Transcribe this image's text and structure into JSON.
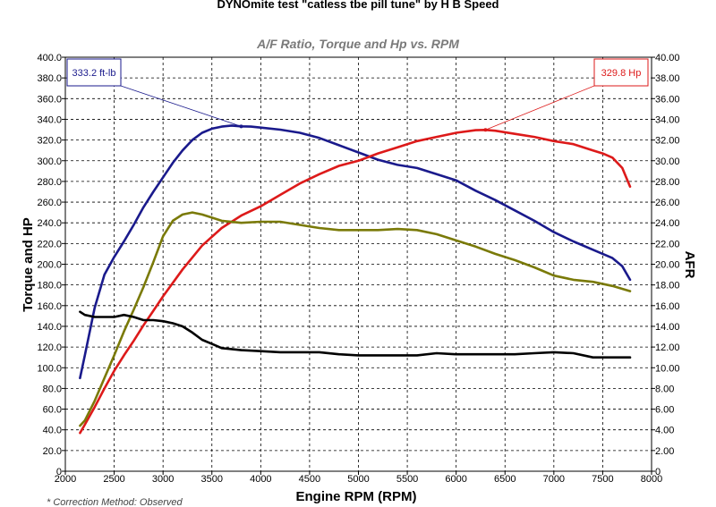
{
  "chart_data": {
    "type": "line",
    "title": "DYNOmite test \"catless tbe pill tune\" by H B Speed",
    "subtitle": "A/F Ratio, Torque and Hp vs. RPM",
    "xlabel": "Engine RPM (RPM)",
    "ylabel": "Torque and HP",
    "y2label": "AFR",
    "footnote": "* Correction Method: Observed",
    "xlim": [
      2000,
      8000
    ],
    "ylim": [
      0,
      400
    ],
    "y2lim": [
      0,
      40
    ],
    "grid": true,
    "x_ticks": [
      "2000",
      "2500",
      "3000",
      "3500",
      "4000",
      "4500",
      "5000",
      "5500",
      "6000",
      "6500",
      "7000",
      "7500",
      "8000"
    ],
    "y_ticks": [
      "0",
      "20.0",
      "40.0",
      "60.0",
      "80.0",
      "100.0",
      "120.0",
      "140.0",
      "160.0",
      "180.0",
      "200.0",
      "220.0",
      "240.0",
      "260.0",
      "280.0",
      "300.0",
      "320.0",
      "340.0",
      "360.0",
      "380.0",
      "400.0"
    ],
    "y2_ticks": [
      "0",
      "2.00",
      "4.00",
      "6.00",
      "8.00",
      "10.00",
      "12.00",
      "14.00",
      "16.00",
      "18.00",
      "20.00",
      "22.00",
      "24.00",
      "26.00",
      "28.00",
      "30.00",
      "32.00",
      "34.00",
      "36.00",
      "38.00",
      "40.00"
    ],
    "series": [
      {
        "axis": "left",
        "color": "#1a1a8c",
        "x": [
          2150,
          2200,
          2300,
          2400,
          2500,
          2600,
          2700,
          2800,
          2900,
          3000,
          3100,
          3200,
          3300,
          3400,
          3500,
          3600,
          3700,
          3800,
          3900,
          4000,
          4200,
          4400,
          4600,
          4800,
          5000,
          5200,
          5400,
          5600,
          5800,
          6000,
          6200,
          6400,
          6600,
          6800,
          7000,
          7200,
          7400,
          7500,
          7600,
          7700,
          7780
        ],
        "y": [
          90,
          112,
          158,
          190,
          207,
          222,
          238,
          255,
          270,
          284,
          298,
          310,
          320,
          327,
          331,
          333,
          334,
          333.2,
          333,
          332,
          330,
          327,
          322,
          315,
          308,
          301,
          296,
          293,
          287,
          281,
          271,
          262,
          252,
          242,
          231,
          222,
          214,
          210,
          206,
          198,
          185
        ]
      },
      {
        "axis": "left",
        "color": "#dd1a1a",
        "x": [
          2150,
          2200,
          2300,
          2400,
          2500,
          2600,
          2700,
          2800,
          2900,
          3000,
          3200,
          3400,
          3600,
          3800,
          4000,
          4200,
          4400,
          4600,
          4800,
          5000,
          5200,
          5400,
          5600,
          5800,
          6000,
          6200,
          6300,
          6400,
          6600,
          6800,
          7000,
          7200,
          7300,
          7400,
          7500,
          7600,
          7700,
          7780
        ],
        "y": [
          37,
          45,
          62,
          80,
          97,
          112,
          126,
          141,
          155,
          169,
          195,
          218,
          235,
          247,
          256,
          267,
          278,
          287,
          295,
          300,
          307,
          313,
          319,
          323,
          327,
          329.5,
          329.8,
          329,
          326,
          323,
          319,
          316,
          313,
          310,
          307,
          303,
          293,
          275
        ]
      },
      {
        "axis": "right",
        "color": "#7a7a08",
        "x": [
          2150,
          2200,
          2300,
          2400,
          2500,
          2600,
          2700,
          2800,
          2900,
          3000,
          3100,
          3200,
          3300,
          3400,
          3500,
          3600,
          3800,
          4000,
          4200,
          4400,
          4600,
          4800,
          5000,
          5200,
          5400,
          5600,
          5800,
          6000,
          6200,
          6400,
          6600,
          6800,
          7000,
          7200,
          7400,
          7600,
          7780
        ],
        "y": [
          4.4,
          4.9,
          6.8,
          9.0,
          11.2,
          13.5,
          15.6,
          17.8,
          20.2,
          22.7,
          24.2,
          24.8,
          25.0,
          24.8,
          24.5,
          24.2,
          24.0,
          24.1,
          24.1,
          23.8,
          23.5,
          23.3,
          23.3,
          23.3,
          23.4,
          23.3,
          22.9,
          22.3,
          21.7,
          21.0,
          20.4,
          19.7,
          18.9,
          18.5,
          18.3,
          17.9,
          17.4
        ]
      },
      {
        "axis": "right",
        "color": "#000000",
        "x": [
          2150,
          2200,
          2300,
          2400,
          2500,
          2600,
          2700,
          2800,
          2900,
          3000,
          3100,
          3200,
          3300,
          3400,
          3500,
          3600,
          3800,
          4000,
          4200,
          4400,
          4600,
          4800,
          5000,
          5200,
          5400,
          5600,
          5800,
          6000,
          6200,
          6400,
          6600,
          6800,
          7000,
          7200,
          7400,
          7600,
          7780
        ],
        "y": [
          15.4,
          15.1,
          14.9,
          14.9,
          14.9,
          15.1,
          14.9,
          14.6,
          14.6,
          14.5,
          14.3,
          14.0,
          13.4,
          12.7,
          12.3,
          11.9,
          11.7,
          11.6,
          11.5,
          11.5,
          11.5,
          11.3,
          11.2,
          11.2,
          11.2,
          11.2,
          11.4,
          11.3,
          11.3,
          11.3,
          11.3,
          11.4,
          11.5,
          11.4,
          11.0,
          11.0,
          11.0
        ]
      }
    ],
    "annotations": [
      {
        "text": "333.2 ft-lb",
        "x": 3800,
        "y": 333.2,
        "color": "#1a1a8c"
      },
      {
        "text": "329.8 Hp",
        "x": 6300,
        "y": 329.8,
        "color": "#dd1a1a"
      }
    ]
  }
}
